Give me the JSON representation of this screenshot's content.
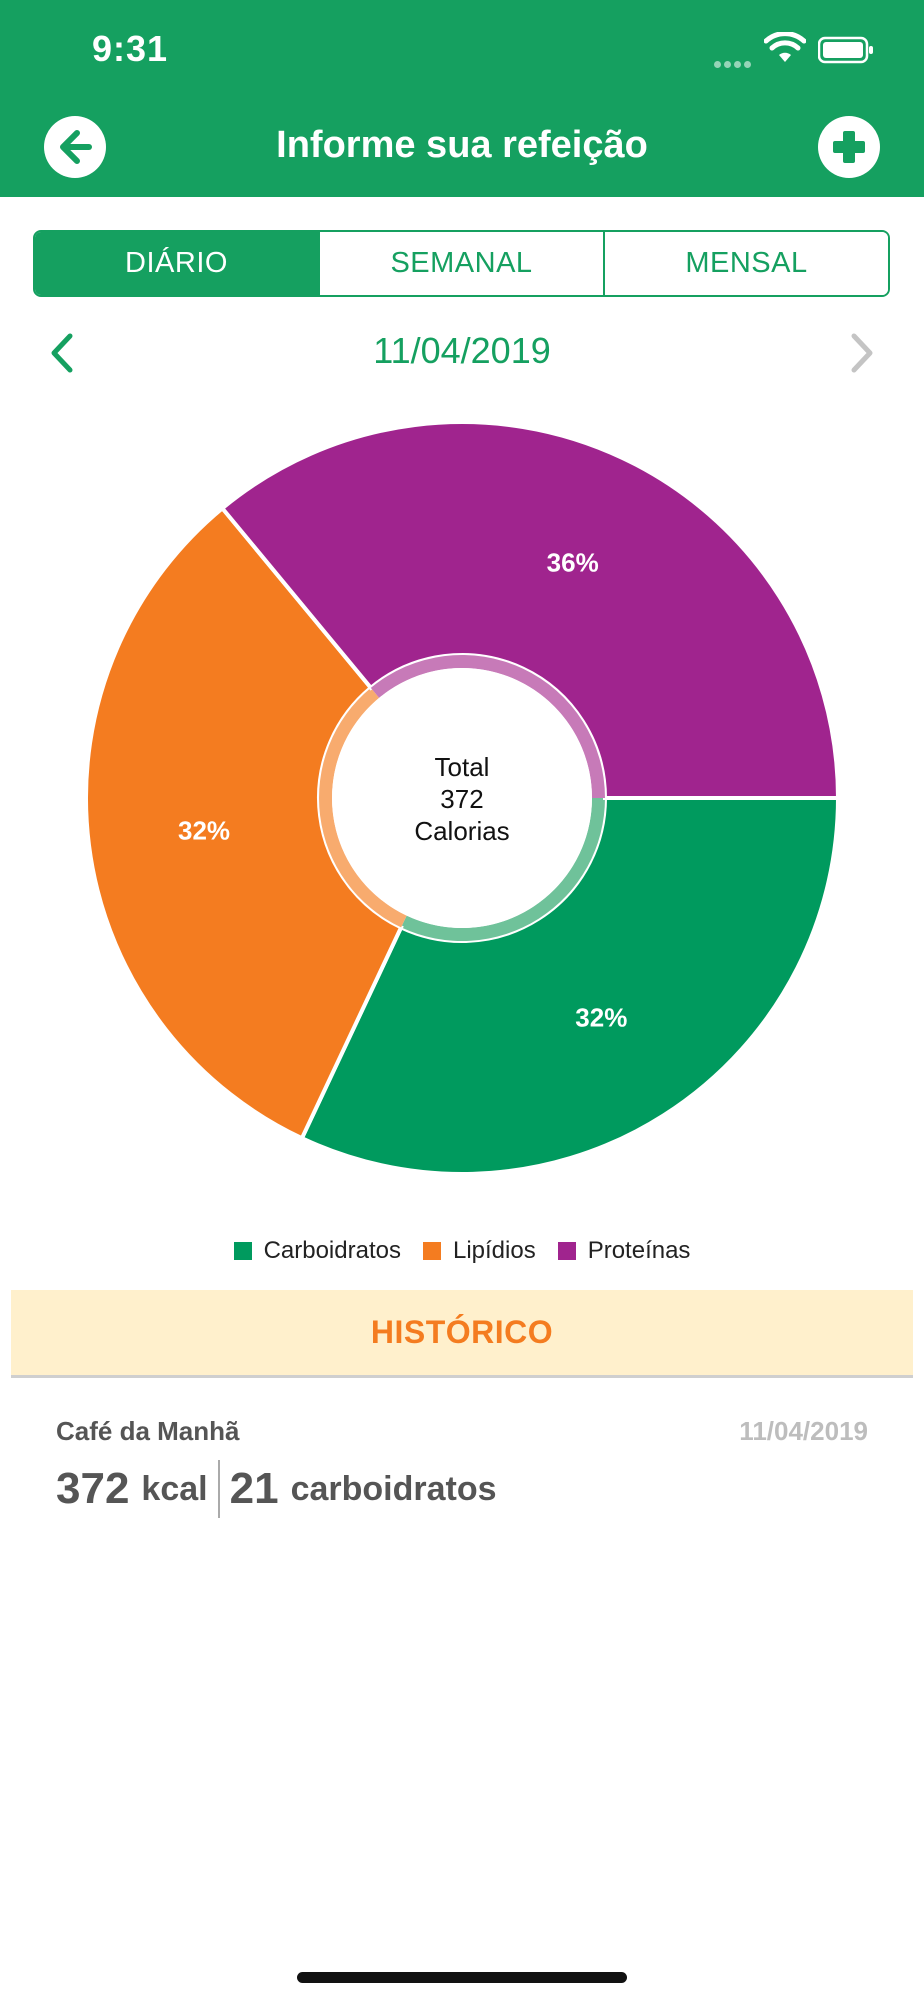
{
  "status_bar": {
    "time": "9:31"
  },
  "header": {
    "title": "Informe sua refeição",
    "back_icon": "arrow-left-icon",
    "add_icon": "plus-icon"
  },
  "tabs": [
    {
      "label": "DIÁRIO",
      "active": true
    },
    {
      "label": "SEMANAL",
      "active": false
    },
    {
      "label": "MENSAL",
      "active": false
    }
  ],
  "date_nav": {
    "date": "11/04/2019",
    "prev_icon": "chevron-left-icon",
    "next_icon": "chevron-right-icon"
  },
  "chart_data": {
    "type": "pie",
    "center_text": [
      "Total",
      "372",
      "Calorias"
    ],
    "slices": [
      {
        "name": "Carboidratos",
        "value": 32,
        "label": "32%",
        "color": "#009a5e",
        "inner_color": "#6fc29a"
      },
      {
        "name": "Lipídios",
        "value": 32,
        "label": "32%",
        "color": "#f47c20",
        "inner_color": "#f8ab6e"
      },
      {
        "name": "Proteínas",
        "value": 36,
        "label": "36%",
        "color": "#a0248e",
        "inner_color": "#c77ab8"
      }
    ],
    "legend_placement": "bottom"
  },
  "history": {
    "title": "HISTÓRICO",
    "items": [
      {
        "name": "Café da Manhã",
        "date": "11/04/2019",
        "kcal": "372",
        "kcal_unit": "kcal",
        "carbs": "21",
        "carbs_unit": "carboidratos"
      }
    ]
  },
  "colors": {
    "brand_green": "#15a060",
    "accent_orange": "#f47c20",
    "history_bg": "#fff0cc"
  }
}
